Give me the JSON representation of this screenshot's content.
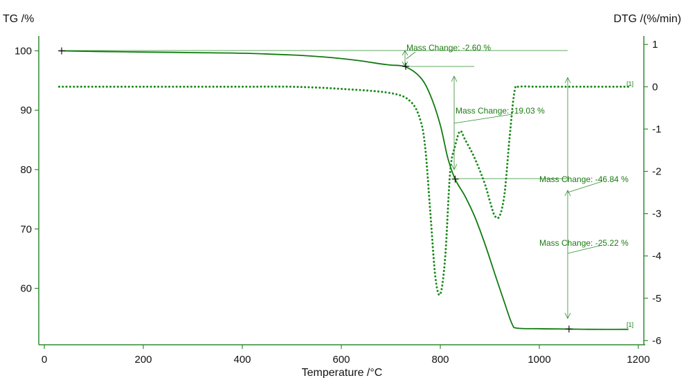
{
  "chart_data": {
    "type": "line",
    "xlabel": "Temperature /°C",
    "ylabel_left": "TG /%",
    "ylabel_right": "DTG /(%/min)",
    "xlim": [
      0,
      1200
    ],
    "ylim_left": [
      50.5,
      102.5
    ],
    "ylim_right": [
      -6.1,
      1.2
    ],
    "x_ticks": [
      0,
      200,
      400,
      600,
      800,
      1000,
      1200
    ],
    "y_left_ticks": [
      60,
      70,
      80,
      90,
      100
    ],
    "y_right_ticks": [
      1,
      0,
      -1,
      -2,
      -3,
      -4,
      -5,
      -6
    ],
    "colors": {
      "tg": "#0f7a0f",
      "dtg": "#1b8a1b",
      "annotation": "#2e8b2e",
      "axis": "#2e8b2e"
    },
    "series": [
      {
        "name": "TG",
        "axis": "left",
        "style": "solid",
        "x": [
          30,
          100,
          200,
          300,
          400,
          500,
          560,
          600,
          640,
          680,
          700,
          730,
          760,
          780,
          800,
          815,
          830,
          850,
          870,
          890,
          910,
          930,
          945,
          955,
          1000,
          1060,
          1100,
          1180
        ],
        "y": [
          100.0,
          99.9,
          99.8,
          99.7,
          99.6,
          99.3,
          99.0,
          98.7,
          98.3,
          97.8,
          97.6,
          97.3,
          95.5,
          92.5,
          87.5,
          82.0,
          78.4,
          75.5,
          72.0,
          67.5,
          62.5,
          57.5,
          54.0,
          53.3,
          53.2,
          53.15,
          53.1,
          53.1
        ]
      },
      {
        "name": "DTG",
        "axis": "right",
        "style": "dotted",
        "x": [
          30,
          100,
          200,
          300,
          400,
          500,
          600,
          700,
          740,
          760,
          770,
          780,
          790,
          800,
          810,
          820,
          830,
          840,
          850,
          870,
          890,
          900,
          910,
          920,
          930,
          940,
          950,
          960,
          1000,
          1100,
          1180
        ],
        "y": [
          0.0,
          0.0,
          0.0,
          0.0,
          0.0,
          0.0,
          -0.05,
          -0.15,
          -0.35,
          -0.8,
          -1.5,
          -3.0,
          -4.5,
          -4.9,
          -4.0,
          -2.0,
          -1.4,
          -1.05,
          -1.25,
          -1.7,
          -2.3,
          -2.7,
          -3.05,
          -3.05,
          -2.5,
          -1.2,
          -0.1,
          0.0,
          0.0,
          0.0,
          0.0
        ]
      }
    ],
    "markers": [
      {
        "x": 35,
        "y": 100.0
      },
      {
        "x": 730,
        "y": 97.4
      },
      {
        "x": 830,
        "y": 78.4
      },
      {
        "x": 1060,
        "y": 53.15
      }
    ],
    "annotations": [
      {
        "label": "Mass Change: -2.60 %"
      },
      {
        "label": "Mass Change: -19.03 %"
      },
      {
        "label": "Mass Change: -46.84 %"
      },
      {
        "label": "Mass Change: -25.22 %"
      }
    ],
    "curve_tags": [
      "[1]",
      "[1]"
    ]
  }
}
